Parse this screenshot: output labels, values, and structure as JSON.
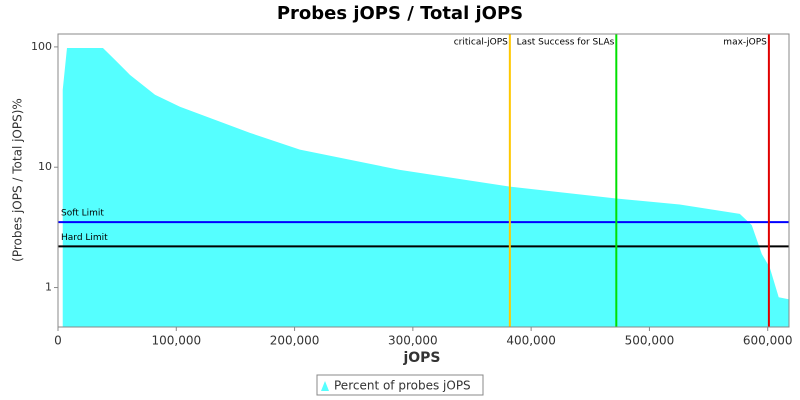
{
  "chart_data": {
    "type": "area",
    "title": "Probes jOPS / Total jOPS",
    "x_label": "jOPS",
    "y_label": "(Probes jOPS / Total jOPS)%",
    "yscale": "log",
    "x": [
      4000,
      7600,
      38000,
      48200,
      60800,
      82000,
      103100,
      162300,
      204500,
      289000,
      382000,
      472000,
      525600,
      576400,
      586500,
      595000,
      601700,
      609300,
      617700
    ],
    "series": [
      {
        "name": "Percent of probes jOPS",
        "color": "#55ffff",
        "values": [
          44,
          98,
          98,
          78,
          58.6,
          40,
          31.8,
          19.3,
          14.0,
          9.5,
          6.9,
          5.5,
          4.9,
          4.1,
          3.3,
          1.9,
          1.47,
          0.83,
          0.8
        ]
      }
    ],
    "xlim": [
      0,
      618000
    ],
    "ylim": [
      0.47,
      128
    ],
    "xticks": [
      0,
      {
        "value": 100000,
        "label": "100,000"
      },
      {
        "value": 200000,
        "label": "200,000"
      },
      {
        "value": 300000,
        "label": "300,000"
      },
      {
        "value": 400000,
        "label": "400,000"
      },
      {
        "value": 500000,
        "label": "500,000"
      },
      {
        "value": 600000,
        "label": "600,000"
      }
    ],
    "yticks": [
      1,
      10,
      100
    ],
    "h_markers": [
      {
        "label": "Soft Limit",
        "value": 3.5,
        "color": "#0000ff"
      },
      {
        "label": "Hard Limit",
        "value": 2.2,
        "color": "#000000"
      }
    ],
    "v_markers": [
      {
        "label": "critical-jOPS",
        "value": 382000,
        "color": "#ffc800"
      },
      {
        "label": "Last Success for SLAs",
        "value": 472000,
        "color": "#00e000"
      },
      {
        "label": "max-jOPS",
        "value": 601000,
        "color": "#e00000"
      }
    ]
  }
}
